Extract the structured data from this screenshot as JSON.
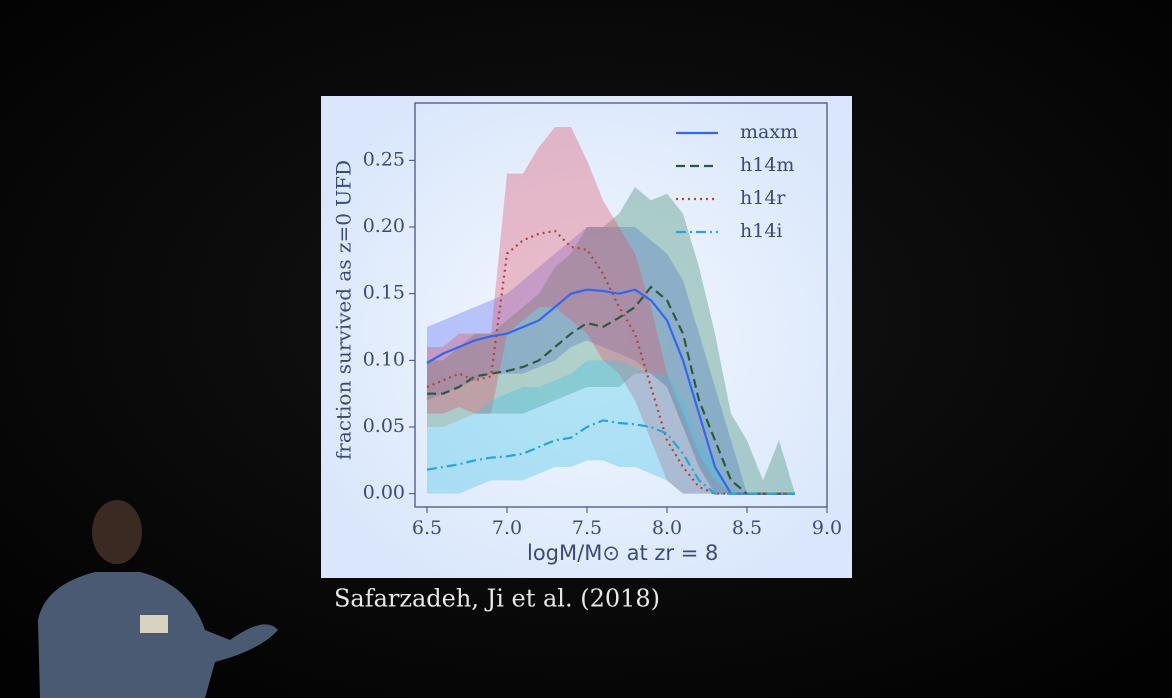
{
  "chart_data": {
    "type": "line",
    "x_label": "logM/M⊙ at zr = 8",
    "y_label": "fraction survived as z=0 UFD",
    "caption": "Safarzadeh, Ji et al. (2018)",
    "x": [
      6.5,
      6.6,
      6.7,
      6.8,
      6.9,
      7.0,
      7.1,
      7.2,
      7.3,
      7.4,
      7.5,
      7.6,
      7.7,
      7.8,
      7.9,
      8.0,
      8.1,
      8.2,
      8.3,
      8.4,
      8.5,
      8.6,
      8.7,
      8.8
    ],
    "series": [
      {
        "name": "maxm",
        "color": "#3566f0",
        "band_color": "#5a6cf0",
        "dash": "solid",
        "values": [
          0.098,
          0.105,
          0.11,
          0.115,
          0.118,
          0.12,
          0.125,
          0.13,
          0.14,
          0.15,
          0.153,
          0.152,
          0.15,
          0.153,
          0.145,
          0.13,
          0.1,
          0.06,
          0.02,
          0,
          0,
          0,
          0,
          0
        ],
        "upper": [
          0.125,
          0.13,
          0.135,
          0.14,
          0.145,
          0.15,
          0.16,
          0.17,
          0.18,
          0.19,
          0.2,
          0.2,
          0.2,
          0.2,
          0.19,
          0.18,
          0.16,
          0.12,
          0.08,
          0.04,
          0,
          0,
          0,
          0
        ],
        "lower": [
          0.07,
          0.075,
          0.08,
          0.085,
          0.09,
          0.09,
          0.09,
          0.095,
          0.1,
          0.11,
          0.115,
          0.11,
          0.105,
          0.1,
          0.09,
          0.08,
          0.05,
          0.02,
          0,
          0,
          0,
          0,
          0,
          0
        ]
      },
      {
        "name": "h14m",
        "color": "#2e5a3c",
        "band_color": "#3a8a6a",
        "dash": "dashed",
        "values": [
          0.075,
          0.075,
          0.08,
          0.088,
          0.09,
          0.092,
          0.095,
          0.1,
          0.11,
          0.12,
          0.128,
          0.125,
          0.132,
          0.14,
          0.155,
          0.145,
          0.12,
          0.07,
          0.04,
          0.01,
          0,
          0,
          0,
          0
        ],
        "upper": [
          0.1,
          0.1,
          0.11,
          0.12,
          0.12,
          0.13,
          0.14,
          0.15,
          0.17,
          0.18,
          0.2,
          0.2,
          0.21,
          0.23,
          0.22,
          0.225,
          0.21,
          0.17,
          0.12,
          0.06,
          0.04,
          0.01,
          0.04,
          0
        ],
        "lower": [
          0.05,
          0.05,
          0.055,
          0.06,
          0.06,
          0.06,
          0.06,
          0.065,
          0.07,
          0.075,
          0.08,
          0.08,
          0.08,
          0.09,
          0.09,
          0.08,
          0.05,
          0.02,
          0,
          0,
          0,
          0,
          0,
          0
        ]
      },
      {
        "name": "h14r",
        "color": "#b0463a",
        "band_color": "#e05068",
        "dash": "dotted",
        "values": [
          0.08,
          0.085,
          0.09,
          0.085,
          0.088,
          0.18,
          0.19,
          0.195,
          0.197,
          0.185,
          0.183,
          0.165,
          0.14,
          0.12,
          0.08,
          0.04,
          0.02,
          0.005,
          0,
          0,
          0,
          0,
          0,
          0
        ],
        "upper": [
          0.11,
          0.11,
          0.12,
          0.12,
          0.12,
          0.24,
          0.24,
          0.26,
          0.275,
          0.275,
          0.25,
          0.22,
          0.2,
          0.18,
          0.14,
          0.09,
          0.06,
          0.03,
          0.01,
          0,
          0,
          0,
          0,
          0
        ],
        "lower": [
          0.06,
          0.06,
          0.065,
          0.06,
          0.06,
          0.12,
          0.13,
          0.14,
          0.14,
          0.13,
          0.12,
          0.1,
          0.09,
          0.07,
          0.04,
          0.01,
          0,
          0,
          0,
          0,
          0,
          0,
          0,
          0
        ]
      },
      {
        "name": "h14i",
        "color": "#27a6d6",
        "band_color": "#40c4e4",
        "dash": "dashdot",
        "values": [
          0.018,
          0.02,
          0.022,
          0.025,
          0.027,
          0.028,
          0.03,
          0.035,
          0.04,
          0.042,
          0.05,
          0.055,
          0.053,
          0.052,
          0.05,
          0.045,
          0.03,
          0.01,
          0,
          0,
          0,
          0,
          0,
          0
        ],
        "upper": [
          0.05,
          0.05,
          0.055,
          0.06,
          0.07,
          0.075,
          0.08,
          0.08,
          0.085,
          0.09,
          0.1,
          0.1,
          0.1,
          0.095,
          0.09,
          0.09,
          0.07,
          0.04,
          0.02,
          0,
          0,
          0,
          0,
          0
        ],
        "lower": [
          0,
          0,
          0,
          0.005,
          0.01,
          0.01,
          0.01,
          0.015,
          0.02,
          0.02,
          0.025,
          0.025,
          0.02,
          0.02,
          0.015,
          0.01,
          0,
          0,
          0,
          0,
          0,
          0,
          0,
          0
        ]
      }
    ],
    "xlim": [
      6.425,
      9.0
    ],
    "ylim": [
      -0.01,
      0.293
    ],
    "xticks": [
      6.5,
      {
        "value": 7.0,
        "label": "7.0"
      },
      7.5,
      {
        "value": 8.0,
        "label": "8.0"
      },
      8.5,
      {
        "value": 9.0,
        "label": "9.0"
      }
    ],
    "yticks": [
      {
        "value": 0,
        "label": "0.00"
      },
      0.05,
      {
        "value": 0.1,
        "label": "0.10"
      },
      0.15,
      {
        "value": 0.2,
        "label": "0.20"
      },
      0.25
    ],
    "legend": "upper right"
  }
}
